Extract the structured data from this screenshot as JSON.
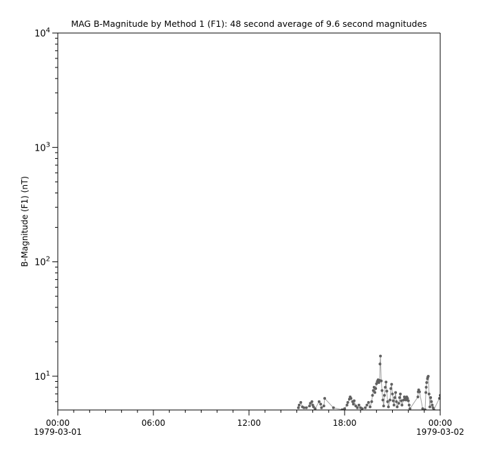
{
  "chart_data": {
    "type": "scatter",
    "title": "MAG  B-Magnitude by Method 1 (F1): 48 second average of 9.6 second magnitudes",
    "ylabel": "B-Magnitude (F1) (nT)",
    "xlabel": "",
    "y_scale": "log",
    "ylim": [
      5.07,
      10000
    ],
    "xlim": [
      "1979-03-01 00:00",
      "1979-03-02 00:00"
    ],
    "grid": false,
    "y_tick_labels": [
      {
        "base": "10",
        "exp": "1"
      },
      {
        "base": "10",
        "exp": "2"
      },
      {
        "base": "10",
        "exp": "3"
      },
      {
        "base": "10",
        "exp": "4"
      }
    ],
    "x_tick_labels": [
      {
        "time": "00:00",
        "date": "1979-03-01"
      },
      {
        "time": "06:00",
        "date": ""
      },
      {
        "time": "12:00",
        "date": ""
      },
      {
        "time": "18:00",
        "date": ""
      },
      {
        "time": "00:00",
        "date": "1979-03-02"
      }
    ],
    "series_color": "#606060",
    "line_color": "#a0a0a0",
    "x_unit": "hours since 1979-03-01 00:00",
    "points": [
      [
        15.1,
        5.3
      ],
      [
        15.15,
        5.6
      ],
      [
        15.25,
        5.9
      ],
      [
        15.35,
        5.4
      ],
      [
        15.45,
        5.3
      ],
      [
        15.6,
        5.3
      ],
      [
        15.8,
        5.5
      ],
      [
        15.85,
        5.8
      ],
      [
        15.95,
        6.0
      ],
      [
        16.0,
        5.6
      ],
      [
        16.05,
        5.4
      ],
      [
        16.15,
        5.2
      ],
      [
        16.4,
        6.0
      ],
      [
        16.5,
        5.7
      ],
      [
        16.55,
        5.3
      ],
      [
        16.7,
        5.5
      ],
      [
        16.75,
        6.4
      ],
      [
        17.3,
        5.3
      ],
      [
        17.85,
        5.1
      ],
      [
        18.0,
        5.2
      ],
      [
        18.15,
        5.6
      ],
      [
        18.2,
        5.9
      ],
      [
        18.3,
        6.3
      ],
      [
        18.35,
        6.6
      ],
      [
        18.4,
        6.4
      ],
      [
        18.5,
        6.0
      ],
      [
        18.55,
        5.7
      ],
      [
        18.6,
        6.1
      ],
      [
        18.7,
        5.5
      ],
      [
        18.8,
        5.3
      ],
      [
        18.9,
        5.6
      ],
      [
        19.0,
        5.3
      ],
      [
        19.1,
        5.2
      ],
      [
        19.3,
        5.3
      ],
      [
        19.4,
        5.6
      ],
      [
        19.5,
        5.9
      ],
      [
        19.6,
        5.4
      ],
      [
        19.7,
        6.0
      ],
      [
        19.75,
        6.8
      ],
      [
        19.8,
        7.5
      ],
      [
        19.85,
        8.0
      ],
      [
        19.9,
        7.2
      ],
      [
        19.95,
        7.8
      ],
      [
        20.0,
        8.6
      ],
      [
        20.05,
        9.0
      ],
      [
        20.1,
        9.3
      ],
      [
        20.15,
        8.8
      ],
      [
        20.2,
        9.2
      ],
      [
        20.22,
        12.8
      ],
      [
        20.25,
        15.0
      ],
      [
        20.3,
        9.1
      ],
      [
        20.35,
        7.5
      ],
      [
        20.4,
        6.2
      ],
      [
        20.45,
        5.5
      ],
      [
        20.5,
        6.8
      ],
      [
        20.55,
        8.0
      ],
      [
        20.6,
        8.9
      ],
      [
        20.65,
        7.4
      ],
      [
        20.7,
        6.0
      ],
      [
        20.75,
        5.4
      ],
      [
        20.85,
        6.2
      ],
      [
        20.9,
        7.8
      ],
      [
        20.95,
        8.5
      ],
      [
        21.0,
        7.0
      ],
      [
        21.05,
        6.1
      ],
      [
        21.1,
        5.6
      ],
      [
        21.15,
        6.5
      ],
      [
        21.2,
        7.2
      ],
      [
        21.25,
        6.0
      ],
      [
        21.3,
        5.4
      ],
      [
        21.4,
        5.8
      ],
      [
        21.45,
        6.5
      ],
      [
        21.5,
        7.0
      ],
      [
        21.55,
        6.1
      ],
      [
        21.6,
        5.6
      ],
      [
        21.7,
        6.2
      ],
      [
        21.75,
        6.6
      ],
      [
        21.8,
        6.4
      ],
      [
        21.85,
        6.2
      ],
      [
        21.9,
        6.6
      ],
      [
        21.95,
        6.4
      ],
      [
        22.0,
        6.1
      ],
      [
        22.05,
        5.6
      ],
      [
        22.1,
        5.2
      ],
      [
        22.6,
        6.6
      ],
      [
        22.62,
        7.3
      ],
      [
        22.65,
        7.6
      ],
      [
        22.7,
        7.3
      ],
      [
        22.9,
        5.2
      ],
      [
        23.05,
        5.1
      ],
      [
        23.1,
        7.2
      ],
      [
        23.12,
        8.0
      ],
      [
        23.15,
        8.8
      ],
      [
        23.2,
        9.5
      ],
      [
        23.22,
        9.8
      ],
      [
        23.25,
        10.0
      ],
      [
        23.3,
        7.0
      ],
      [
        23.35,
        5.4
      ],
      [
        23.4,
        6.5
      ],
      [
        23.45,
        6.0
      ],
      [
        23.5,
        5.6
      ],
      [
        23.55,
        5.3
      ],
      [
        23.6,
        5.1
      ],
      [
        23.95,
        6.4
      ],
      [
        24.0,
        6.8
      ]
    ]
  }
}
